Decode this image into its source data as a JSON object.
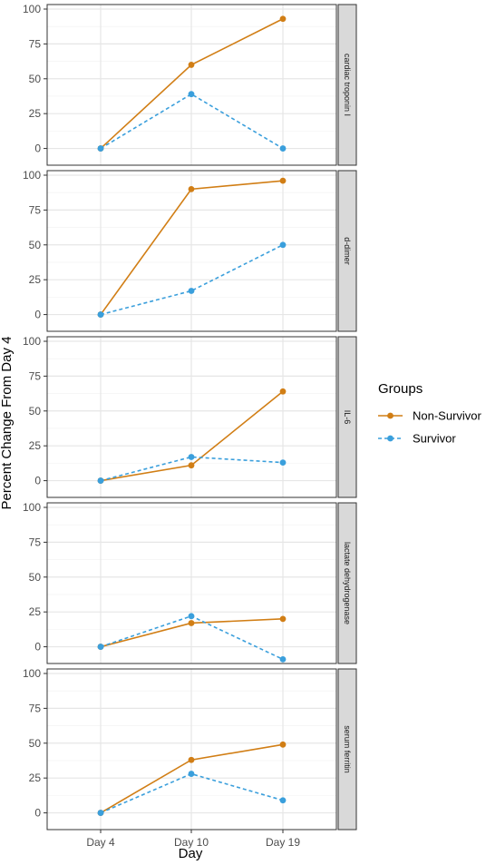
{
  "chart_data": {
    "type": "line",
    "x_categories": [
      "Day 4",
      "Day 10",
      "Day 19"
    ],
    "xlabel": "Day",
    "ylabel": "Percent Change From Day 4",
    "ylim": [
      -12,
      100
    ],
    "y_ticks": [
      0,
      25,
      50,
      75,
      100
    ],
    "grid": true,
    "legend": {
      "title": "Groups",
      "placement": "right",
      "entries": [
        {
          "name": "Non-Survivor",
          "color": "#D17E15",
          "style": "solid"
        },
        {
          "name": "Survivor",
          "color": "#3A9FDC",
          "style": "dashed"
        }
      ]
    },
    "panels": [
      {
        "label": "cardiac troponin I",
        "series": [
          {
            "name": "Non-Survivor",
            "values": [
              0,
              60,
              93
            ]
          },
          {
            "name": "Survivor",
            "values": [
              0,
              39,
              0
            ]
          }
        ]
      },
      {
        "label": "d-dimer",
        "series": [
          {
            "name": "Non-Survivor",
            "values": [
              0,
              90,
              96
            ]
          },
          {
            "name": "Survivor",
            "values": [
              0,
              17,
              50
            ]
          }
        ]
      },
      {
        "label": "IL-6",
        "series": [
          {
            "name": "Non-Survivor",
            "values": [
              0,
              11,
              64
            ]
          },
          {
            "name": "Survivor",
            "values": [
              0,
              17,
              13
            ]
          }
        ]
      },
      {
        "label": "lactate dehydrogenase",
        "series": [
          {
            "name": "Non-Survivor",
            "values": [
              0,
              17,
              20
            ]
          },
          {
            "name": "Survivor",
            "values": [
              0,
              22,
              -9
            ]
          }
        ]
      },
      {
        "label": "serum ferritin",
        "series": [
          {
            "name": "Non-Survivor",
            "values": [
              0,
              38,
              49
            ]
          },
          {
            "name": "Survivor",
            "values": [
              0,
              28,
              9
            ]
          }
        ]
      }
    ]
  }
}
